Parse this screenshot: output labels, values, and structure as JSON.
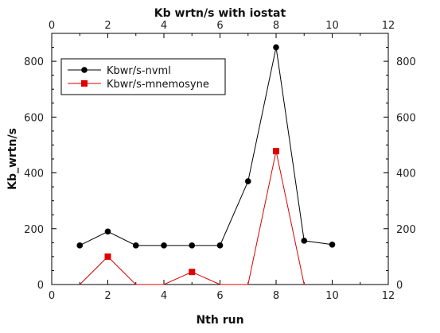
{
  "chart_data": {
    "type": "line",
    "title": "Kb wrtn/s with iostat",
    "xlabel": "Nth run",
    "ylabel": "Kb_wrtn/s",
    "xlim": [
      0,
      12
    ],
    "ylim": [
      0,
      900
    ],
    "xticks": [
      0,
      2,
      4,
      6,
      8,
      10,
      12
    ],
    "yticks": [
      0,
      200,
      400,
      600,
      800
    ],
    "x_minor_step": 1,
    "y_minor_step": 50,
    "grid": false,
    "legend_position": "top-left",
    "series": [
      {
        "name": "Kbwr/s-nvml",
        "color": "#000000",
        "marker": "circle",
        "x": [
          1,
          2,
          3,
          4,
          5,
          6,
          7,
          8,
          9,
          10
        ],
        "y": [
          140,
          190,
          140,
          140,
          140,
          140,
          370,
          850,
          157,
          143
        ]
      },
      {
        "name": "Kbwr/s-mnemosyne",
        "color": "#dd0000",
        "marker": "square",
        "x": [
          1,
          2,
          3,
          4,
          5,
          6,
          7,
          8,
          9
        ],
        "y": [
          0,
          100,
          0,
          0,
          45,
          0,
          0,
          478,
          0
        ]
      }
    ]
  }
}
